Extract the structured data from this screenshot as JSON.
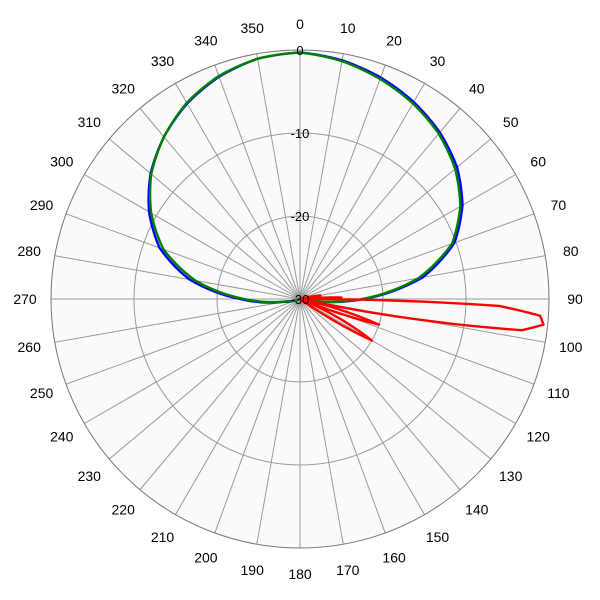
{
  "chart_data": {
    "type": "polar",
    "title": "",
    "angle_ticks": [
      "0",
      "10",
      "20",
      "30",
      "40",
      "50",
      "60",
      "70",
      "80",
      "90",
      "100",
      "110",
      "120",
      "130",
      "140",
      "150",
      "160",
      "170",
      "180",
      "190",
      "200",
      "210",
      "220",
      "230",
      "240",
      "250",
      "260",
      "270",
      "280",
      "290",
      "300",
      "310",
      "320",
      "330",
      "340",
      "350"
    ],
    "radial_ticks": [
      "0",
      "-10",
      "-20",
      "-30"
    ],
    "rlim": [
      -30,
      0
    ],
    "angle_direction": "clockwise",
    "zero_angle": "top",
    "grid": true,
    "legend": "none",
    "series": [
      {
        "color": "#0000ff",
        "theta": [
          0,
          10,
          20,
          30,
          40,
          50,
          60,
          70,
          80,
          90,
          100,
          110,
          120,
          180,
          240,
          250,
          260,
          270,
          280,
          290,
          300,
          310,
          320,
          330,
          340,
          350
        ],
        "r": [
          -0.3,
          -0.8,
          -1.6,
          -2.6,
          -3.8,
          -5.3,
          -7.4,
          -10.2,
          -15,
          -22.3,
          -29.4,
          -30,
          -30,
          -30,
          -30,
          -30,
          -28,
          -22.8,
          -16.5,
          -12,
          -9,
          -6.5,
          -4.5,
          -2.8,
          -1.5,
          -0.6
        ]
      },
      {
        "color": "#008000",
        "theta": [
          0,
          10,
          20,
          30,
          40,
          50,
          60,
          70,
          80,
          90,
          100,
          110,
          120,
          180,
          240,
          250,
          260,
          270,
          280,
          290,
          300,
          310,
          320,
          330,
          340,
          350
        ],
        "r": [
          -0.3,
          -0.9,
          -1.8,
          -2.8,
          -4,
          -5.6,
          -7.7,
          -10.5,
          -15.5,
          -22.5,
          -29.5,
          -30,
          -30,
          -30,
          -30,
          -30,
          -28.5,
          -23.3,
          -17.2,
          -12.5,
          -9.3,
          -6.6,
          -4.5,
          -2.7,
          -1.4,
          -0.6
        ]
      },
      {
        "color": "#ff0000",
        "theta": [
          0,
          30,
          60,
          75,
          80,
          85,
          88,
          90,
          92,
          94,
          96,
          98,
          102,
          108,
          112,
          120,
          125,
          180,
          359.9
        ],
        "r": [
          -30,
          -30,
          -30,
          -30,
          -27.5,
          -30,
          -25,
          -30,
          -6,
          -1,
          -0.5,
          -3,
          -30,
          -20,
          -30,
          -20,
          -30,
          -30,
          -30
        ]
      }
    ]
  }
}
